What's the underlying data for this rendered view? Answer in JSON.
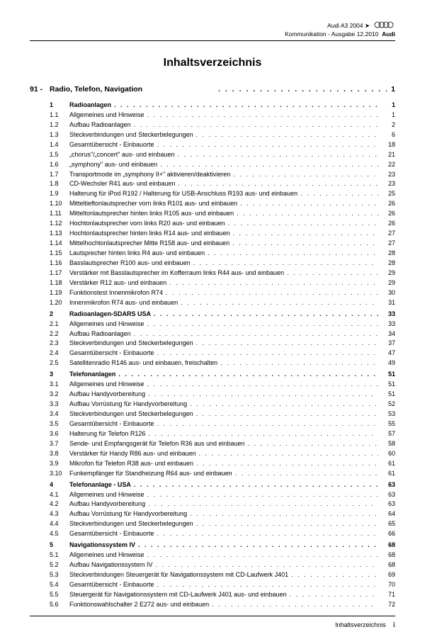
{
  "header": {
    "model": "Audi A3 2004 ➤",
    "brand": "Audi",
    "line2": "Kommunikation - Ausgabe 12.2010"
  },
  "title": "Inhaltsverzeichnis",
  "chapter": {
    "num": "91 -",
    "title": "Radio, Telefon, Navigation",
    "page": "1"
  },
  "sections": [
    {
      "type": "section",
      "num": "1",
      "txt": "Radioanlagen",
      "pg": "1"
    },
    {
      "num": "1.1",
      "txt": "Allgemeines und Hinweise",
      "pg": "1"
    },
    {
      "num": "1.2",
      "txt": "Aufbau Radioanlagen",
      "pg": "2"
    },
    {
      "num": "1.3",
      "txt": "Steckverbindungen und Steckerbelegungen",
      "pg": "6"
    },
    {
      "num": "1.4",
      "txt": "Gesamtübersicht - Einbauorte",
      "pg": "18"
    },
    {
      "num": "1.5",
      "txt": "„chorus\"/„concert\" aus- und einbauen",
      "pg": "21"
    },
    {
      "num": "1.6",
      "txt": "„symphony\" aus- und einbauen",
      "pg": "22"
    },
    {
      "num": "1.7",
      "txt": "Transportmode im „symphony II+\" aktivieren/deaktivieren",
      "pg": "23"
    },
    {
      "num": "1.8",
      "txt": "CD-Wechsler R41 aus- und einbauen",
      "pg": "23"
    },
    {
      "num": "1.9",
      "txt": "Halterung für iPod R192 / Halterung für USB-Anschluss R193 aus- und einbauen",
      "pg": "25"
    },
    {
      "num": "1.10",
      "txt": "Mitteltieftonlautsprecher vorn links R101 aus- und einbauen",
      "pg": "26"
    },
    {
      "num": "1.11",
      "txt": "Mitteltonlautsprecher hinten links R105 aus- und einbauen",
      "pg": "26"
    },
    {
      "num": "1.12",
      "txt": "Hochtonlautsprecher vorn links R20 aus- und einbauen",
      "pg": "26"
    },
    {
      "num": "1.13",
      "txt": "Hochtonlautsprecher hinten links R14 aus- und einbauen",
      "pg": "27"
    },
    {
      "num": "1.14",
      "txt": "Mittelhochtonlautsprecher Mitte R158 aus- und einbauen",
      "pg": "27"
    },
    {
      "num": "1.15",
      "txt": "Lautsprecher hinten links R4 aus- und einbauen",
      "pg": "28"
    },
    {
      "num": "1.16",
      "txt": "Basslautsprecher R100 aus- und einbauen",
      "pg": "28"
    },
    {
      "num": "1.17",
      "txt": "Verstärker mit Basslautsprecher im Kofferraum links R44 aus- und einbauen",
      "pg": "29"
    },
    {
      "num": "1.18",
      "txt": "Verstärker R12 aus- und einbauen",
      "pg": "29"
    },
    {
      "num": "1.19",
      "txt": "Funktionstest Innenmikrofon R74",
      "pg": "30"
    },
    {
      "num": "1.20",
      "txt": "Innenmikrofon R74 aus- und einbauen",
      "pg": "31"
    },
    {
      "type": "section",
      "num": "2",
      "txt": "Radioanlagen-SDARS USA",
      "pg": "33"
    },
    {
      "num": "2.1",
      "txt": "Allgemeines und Hinweise",
      "pg": "33"
    },
    {
      "num": "2.2",
      "txt": "Aufbau Radioanlagen",
      "pg": "34"
    },
    {
      "num": "2.3",
      "txt": "Steckverbindungen und Steckerbelegungen",
      "pg": "37"
    },
    {
      "num": "2.4",
      "txt": "Gesamtübersicht - Einbauorte",
      "pg": "47"
    },
    {
      "num": "2.5",
      "txt": "Satellitenradio R146 aus- und einbauen, freischalten",
      "pg": "49"
    },
    {
      "type": "section",
      "num": "3",
      "txt": "Telefonanlagen",
      "pg": "51"
    },
    {
      "num": "3.1",
      "txt": "Allgemeines und Hinweise",
      "pg": "51"
    },
    {
      "num": "3.2",
      "txt": "Aufbau Handyvorbereitung",
      "pg": "51"
    },
    {
      "num": "3.3",
      "txt": "Aufbau Vorrüstung für Handyvorbereitung",
      "pg": "52"
    },
    {
      "num": "3.4",
      "txt": "Steckverbindungen und Steckerbelegungen",
      "pg": "53"
    },
    {
      "num": "3.5",
      "txt": "Gesamtübersicht - Einbauorte",
      "pg": "55"
    },
    {
      "num": "3.6",
      "txt": "Halterung für Telefon R126",
      "pg": "57"
    },
    {
      "num": "3.7",
      "txt": "Sende- und Empfangsgerät für Telefon R36 aus und einbauen",
      "pg": "58"
    },
    {
      "num": "3.8",
      "txt": "Verstärker für Handy R86 aus- und einbauen",
      "pg": "60"
    },
    {
      "num": "3.9",
      "txt": "Mikrofon für Telefon R38 aus- und einbauen",
      "pg": "61"
    },
    {
      "num": "3.10",
      "txt": "Funkempfänger für Standheizung R64 aus- und einbauen",
      "pg": "61"
    },
    {
      "type": "section",
      "num": "4",
      "txt": "Telefonanlage - USA",
      "pg": "63"
    },
    {
      "num": "4.1",
      "txt": "Allgemeines und Hinweise",
      "pg": "63"
    },
    {
      "num": "4.2",
      "txt": "Aufbau Handyvorbereitung",
      "pg": "63"
    },
    {
      "num": "4.3",
      "txt": "Aufbau Vorrüstung für Handyvorbereitung",
      "pg": "64"
    },
    {
      "num": "4.4",
      "txt": "Steckverbindungen und Steckerbelegungen",
      "pg": "65"
    },
    {
      "num": "4.5",
      "txt": "Gesamtübersicht - Einbauorte",
      "pg": "66"
    },
    {
      "type": "section",
      "num": "5",
      "txt": "Navigationssystem IV",
      "pg": "68"
    },
    {
      "num": "5.1",
      "txt": "Allgemeines und Hinweise",
      "pg": "68"
    },
    {
      "num": "5.2",
      "txt": "Aufbau Navigationssystem IV",
      "pg": "68"
    },
    {
      "num": "5.3",
      "txt": "Steckverbindungen Steuergerät für Navigationssystem mit CD-Laufwerk J401",
      "pg": "69"
    },
    {
      "num": "5.4",
      "txt": "Gesamtübersicht - Einbauorte",
      "pg": "70"
    },
    {
      "num": "5.5",
      "txt": "Steuergerät für Navigationssystem mit CD-Laufwerk J401 aus- und einbauen",
      "pg": "71"
    },
    {
      "num": "5.6",
      "txt": "Funktionswahlschalter 2 E272 aus- und einbauen",
      "pg": "72"
    }
  ],
  "footer": {
    "label": "Inhaltsverzeichnis",
    "page": "i"
  }
}
